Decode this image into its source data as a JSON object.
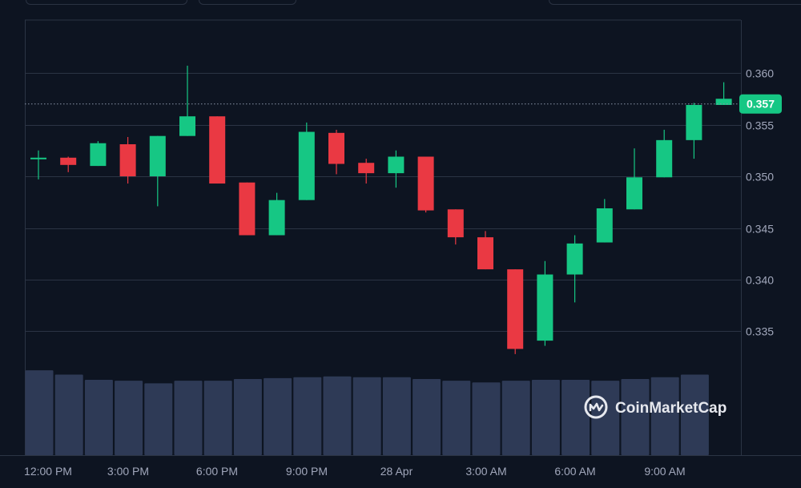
{
  "chart_data": {
    "type": "candlestick",
    "title": "",
    "xlabel": "",
    "ylabel": "",
    "ylim": [
      0.3305,
      0.3625
    ],
    "y_ticks": [
      "0.360",
      "0.355",
      "0.350",
      "0.345",
      "0.340",
      "0.335"
    ],
    "x_ticks": [
      "12:00 PM",
      "3:00 PM",
      "6:00 PM",
      "9:00 PM",
      "28 Apr",
      "3:00 AM",
      "6:00 AM",
      "9:00 AM"
    ],
    "current_price": "0.357",
    "watermark": "CoinMarketCap",
    "colors": {
      "up": "#16c784",
      "down": "#ea3943",
      "volume": "#2e3a56",
      "grid": "#2b3444",
      "text": "#a1a7bb",
      "background": "#0d1421"
    },
    "candles": [
      {
        "o": 0.3517,
        "h": 0.3525,
        "l": 0.3497,
        "c": 0.3518
      },
      {
        "o": 0.3518,
        "h": 0.3519,
        "l": 0.3504,
        "c": 0.3511
      },
      {
        "o": 0.351,
        "h": 0.3534,
        "l": 0.351,
        "c": 0.3532
      },
      {
        "o": 0.3531,
        "h": 0.3538,
        "l": 0.3493,
        "c": 0.35
      },
      {
        "o": 0.35,
        "h": 0.3539,
        "l": 0.3471,
        "c": 0.3539
      },
      {
        "o": 0.3539,
        "h": 0.3607,
        "l": 0.3539,
        "c": 0.3558
      },
      {
        "o": 0.3558,
        "h": 0.3558,
        "l": 0.3493,
        "c": 0.3493
      },
      {
        "o": 0.3494,
        "h": 0.3494,
        "l": 0.3443,
        "c": 0.3443
      },
      {
        "o": 0.3443,
        "h": 0.3484,
        "l": 0.3443,
        "c": 0.3477
      },
      {
        "o": 0.3477,
        "h": 0.3552,
        "l": 0.3477,
        "c": 0.3543
      },
      {
        "o": 0.3542,
        "h": 0.3545,
        "l": 0.3502,
        "c": 0.3512
      },
      {
        "o": 0.3513,
        "h": 0.3517,
        "l": 0.3493,
        "c": 0.3503
      },
      {
        "o": 0.3503,
        "h": 0.3525,
        "l": 0.3489,
        "c": 0.3519
      },
      {
        "o": 0.3519,
        "h": 0.3519,
        "l": 0.3465,
        "c": 0.3467
      },
      {
        "o": 0.3468,
        "h": 0.3468,
        "l": 0.3434,
        "c": 0.3441
      },
      {
        "o": 0.3441,
        "h": 0.3447,
        "l": 0.341,
        "c": 0.341
      },
      {
        "o": 0.341,
        "h": 0.341,
        "l": 0.3328,
        "c": 0.3333
      },
      {
        "o": 0.3341,
        "h": 0.3418,
        "l": 0.3336,
        "c": 0.3405
      },
      {
        "o": 0.3405,
        "h": 0.3443,
        "l": 0.3378,
        "c": 0.3435
      },
      {
        "o": 0.3436,
        "h": 0.3478,
        "l": 0.3436,
        "c": 0.3469
      },
      {
        "o": 0.3468,
        "h": 0.3527,
        "l": 0.3468,
        "c": 0.3499
      },
      {
        "o": 0.3499,
        "h": 0.3545,
        "l": 0.3499,
        "c": 0.3535
      },
      {
        "o": 0.3535,
        "h": 0.3571,
        "l": 0.3517,
        "c": 0.3569
      },
      {
        "o": 0.3569,
        "h": 0.3591,
        "l": 0.3569,
        "c": 0.3575
      }
    ],
    "volume": [
      0.98,
      0.93,
      0.87,
      0.86,
      0.83,
      0.86,
      0.86,
      0.88,
      0.89,
      0.9,
      0.91,
      0.9,
      0.9,
      0.88,
      0.86,
      0.84,
      0.86,
      0.87,
      0.87,
      0.86,
      0.88,
      0.9,
      0.93
    ]
  }
}
